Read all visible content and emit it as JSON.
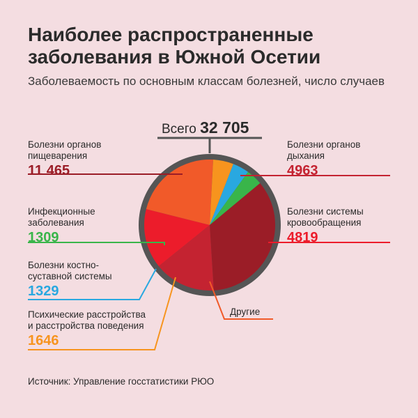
{
  "title": "Наиболее распространенные заболевания в Южной Осетии",
  "subtitle": "Заболеваемость по основным классам болезней, число случаев",
  "total": {
    "label": "Всего",
    "value": "32 705"
  },
  "source": "Источник:  Управление госстатистики РЮО",
  "chart_data": {
    "type": "pie",
    "title": "Наиболее распространенные заболевания в Южной Осетии",
    "total": 32705,
    "slices": [
      {
        "name": "Болезни органов пищеварения",
        "label_text": "11 465",
        "value": 11465,
        "color": "#9b1d27"
      },
      {
        "name": "Болезни органов дыхания",
        "label_text": "4963",
        "value": 4963,
        "color": "#c42331"
      },
      {
        "name": "Болезни системы кровообращения",
        "label_text": "4819",
        "value": 4819,
        "color": "#ec1c2b"
      },
      {
        "name": "Другие",
        "label_text": "",
        "value": 7174,
        "color": "#f15a29"
      },
      {
        "name": "Психические расстройства и расстройства поведения",
        "label_text": "1646",
        "value": 1646,
        "color": "#f7941e"
      },
      {
        "name": "Болезни костно-суставной системы",
        "label_text": "1329",
        "value": 1329,
        "color": "#29a8e0"
      },
      {
        "name": "Инфекционные заболевания",
        "label_text": "1309",
        "value": 1309,
        "color": "#39b54a"
      }
    ]
  },
  "labels": {
    "digestive": {
      "name": "Болезни органов\nпищеварения",
      "value": "11 465"
    },
    "respiratory": {
      "name": "Болезни органов\nдыхания",
      "value": "4963"
    },
    "circulatory": {
      "name": "Болезни системы\nкровообращения",
      "value": "4819"
    },
    "infectious": {
      "name": "Инфекционные\nзаболевания",
      "value": "1309"
    },
    "musculoskeletal": {
      "name": "Болезни костно-\nсуставной системы",
      "value": "1329"
    },
    "mental": {
      "name": "Психические расстройства\nи расстройства поведения",
      "value": "1646"
    },
    "other": {
      "name": "Другие"
    }
  },
  "colors": {
    "rim": "#555555",
    "text": "#2b2b2b",
    "digestive": "#9b1d27",
    "respiratory": "#c42331",
    "circulatory": "#ec1c2b",
    "infectious": "#39b54a",
    "musculoskeletal": "#29a8e0",
    "mental": "#f7941e",
    "other": "#f15a29"
  }
}
